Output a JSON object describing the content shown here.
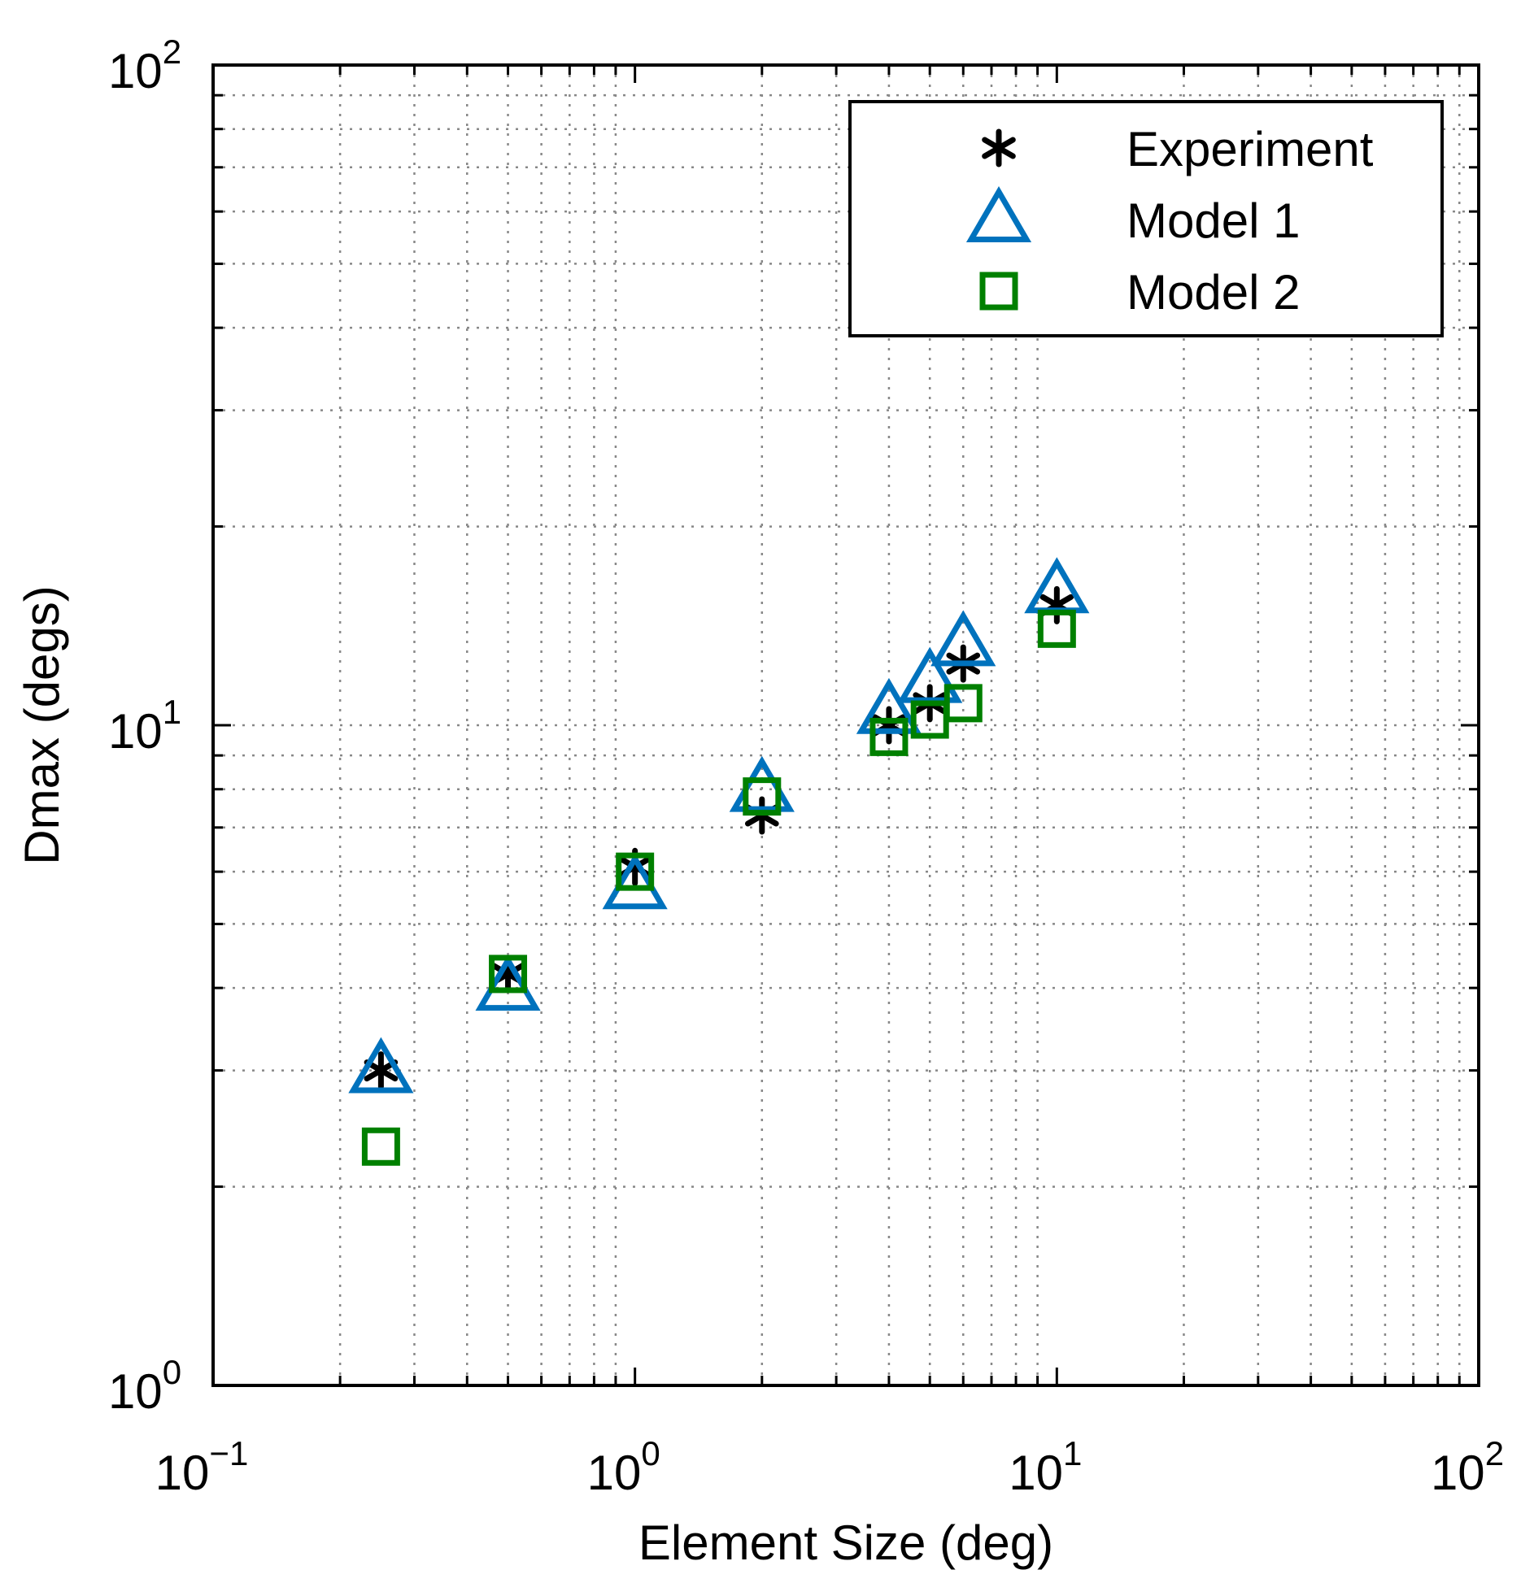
{
  "chart_data": {
    "type": "scatter",
    "title": "",
    "xlabel": "Element Size (deg)",
    "ylabel": "Dmax (degs)",
    "xscale": "log",
    "yscale": "log",
    "xlim": [
      0.1,
      100
    ],
    "ylim": [
      1,
      100
    ],
    "grid": true,
    "legend_position": "top-right",
    "x_ticks": [
      {
        "base": "10",
        "exp": "−1",
        "value": 0.1
      },
      {
        "base": "10",
        "exp": "0",
        "value": 1
      },
      {
        "base": "10",
        "exp": "1",
        "value": 10
      },
      {
        "base": "10",
        "exp": "2",
        "value": 100
      }
    ],
    "y_ticks": [
      {
        "base": "10",
        "exp": "0",
        "value": 1
      },
      {
        "base": "10",
        "exp": "1",
        "value": 10
      },
      {
        "base": "10",
        "exp": "2",
        "value": 100
      }
    ],
    "series": [
      {
        "name": "Experiment",
        "marker": "asterisk",
        "color": "#000000",
        "x": [
          0.25,
          0.5,
          1.0,
          2.0,
          4.0,
          5.0,
          6.0,
          10.0
        ],
        "y": [
          3.0,
          4.2,
          6.1,
          7.3,
          10.0,
          10.8,
          12.4,
          15.2
        ]
      },
      {
        "name": "Model 1",
        "marker": "triangle",
        "color": "#0072BD",
        "x": [
          0.25,
          0.5,
          1.0,
          2.0,
          4.0,
          5.0,
          6.0,
          10.0
        ],
        "y": [
          3.0,
          4.0,
          5.7,
          8.0,
          10.5,
          11.7,
          13.3,
          16.0
        ]
      },
      {
        "name": "Model 2",
        "marker": "square",
        "color": "#008000",
        "x": [
          0.25,
          0.5,
          1.0,
          2.0,
          4.0,
          5.0,
          6.0,
          10.0
        ],
        "y": [
          2.3,
          4.2,
          6.0,
          7.8,
          9.6,
          10.2,
          10.8,
          14.0
        ]
      }
    ]
  }
}
